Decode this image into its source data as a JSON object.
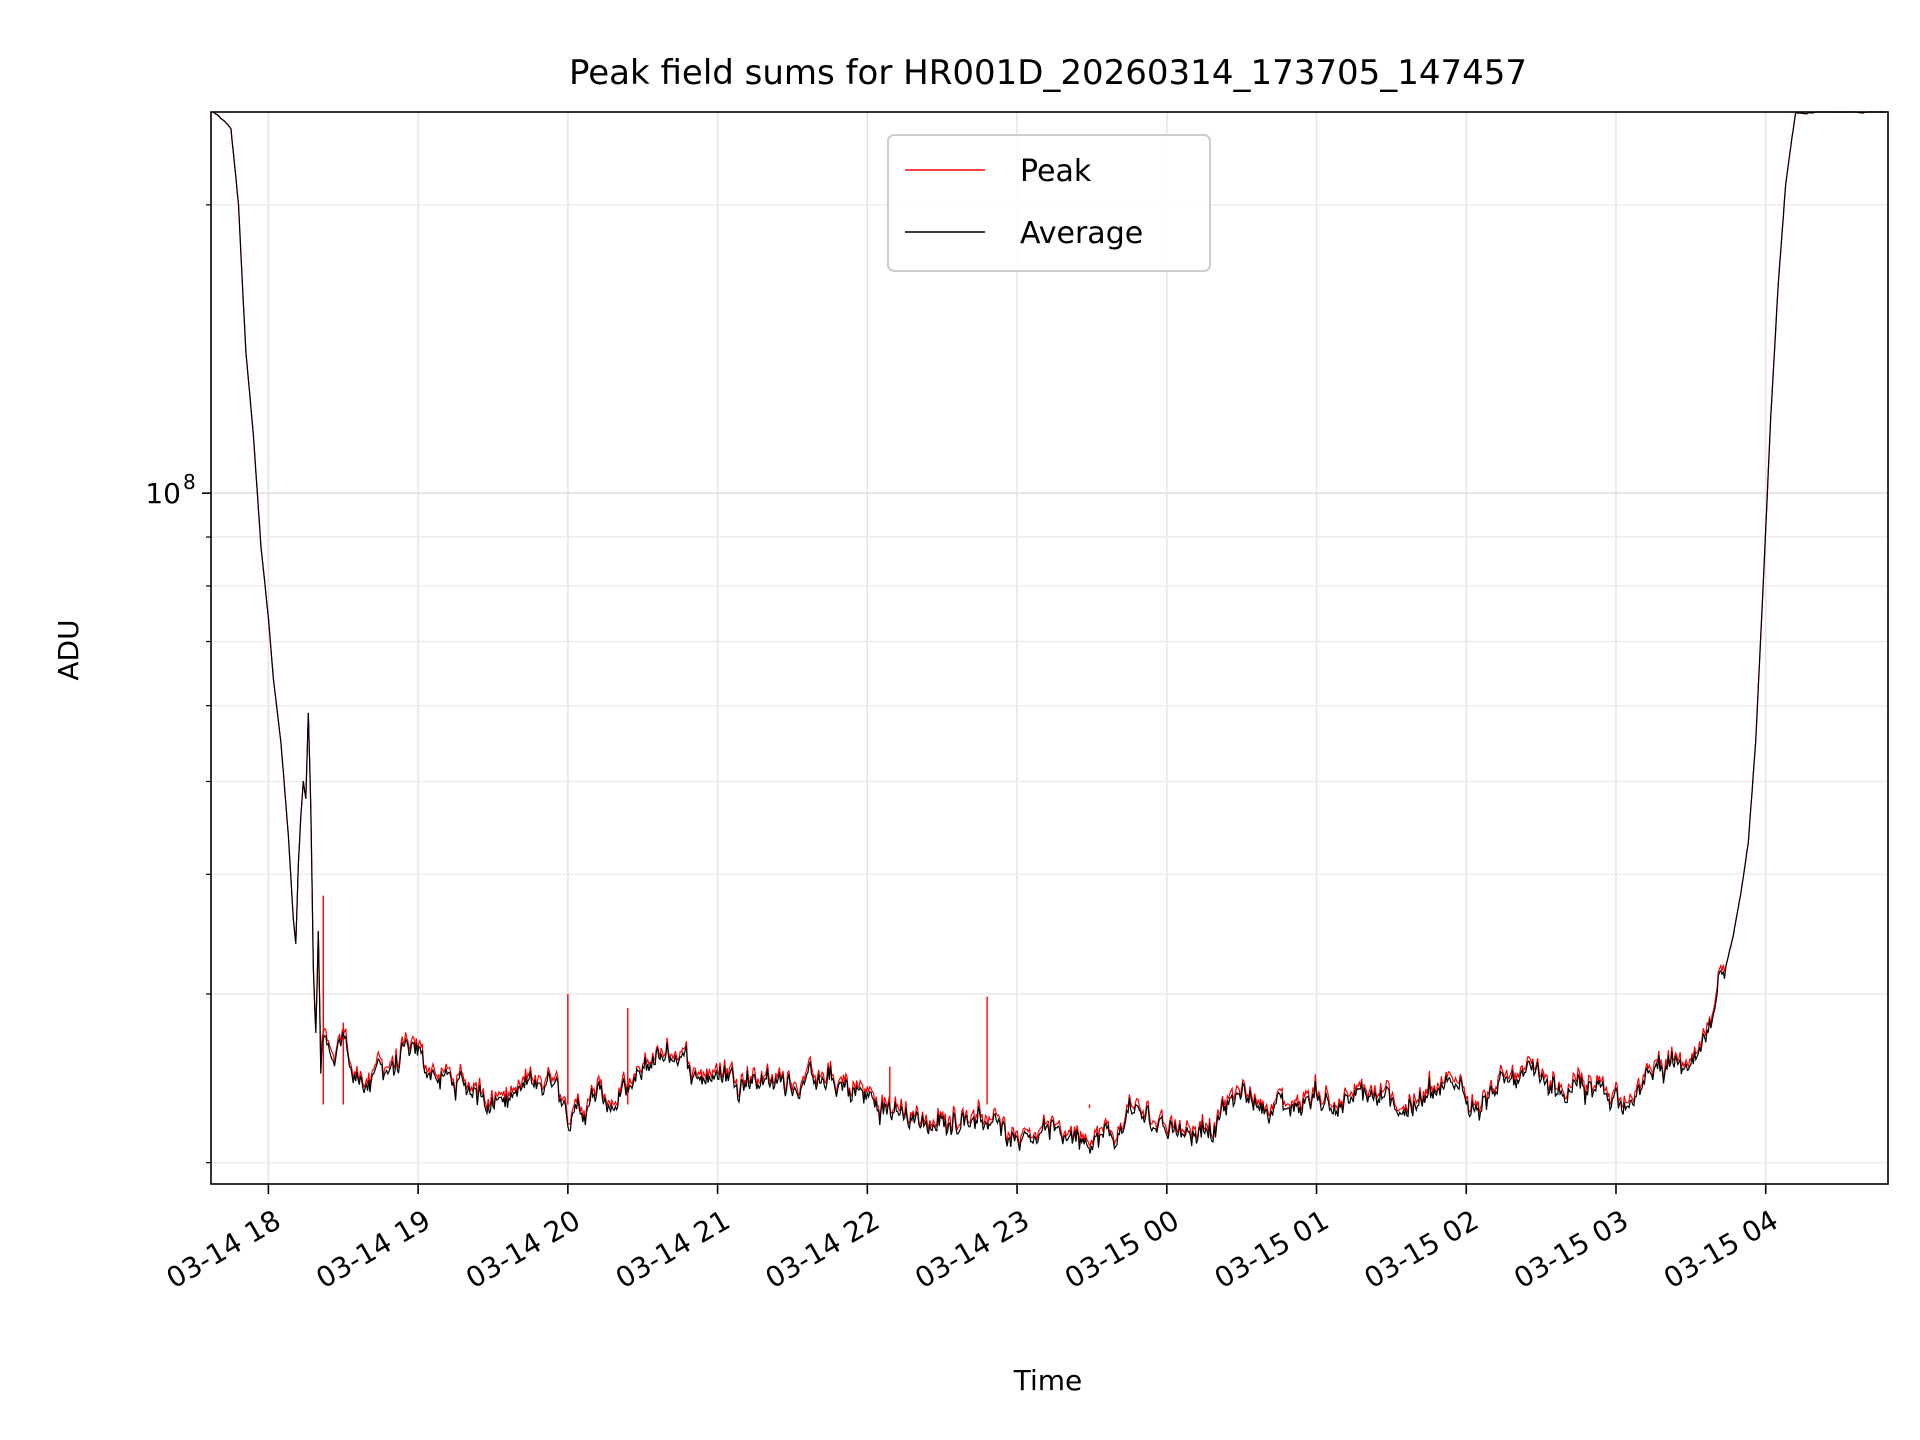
{
  "chart_data": {
    "type": "line",
    "title": "Peak field sums for HR001D_20260314_173705_147457",
    "xlabel": "Time",
    "ylabel": "ADU",
    "x_tick_labels": [
      "03-14 18",
      "03-14 19",
      "03-14 20",
      "03-14 21",
      "03-14 22",
      "03-14 23",
      "03-15 00",
      "03-15 01",
      "03-15 02",
      "03-15 03",
      "03-15 04"
    ],
    "y_tick_label": {
      "base": "10",
      "exp": "8"
    },
    "xlim": [
      "2026-03-14T17:37",
      "2026-03-15T04:49"
    ],
    "ylim": [
      19000000,
      250000000
    ],
    "yscale": "log",
    "grid": true,
    "legend_position": "upper center",
    "series": [
      {
        "name": "Peak",
        "color": "#ff0000",
        "points": [
          [
            "2026-03-14T17:38",
            250000000
          ],
          [
            "2026-03-14T17:45",
            240000000
          ],
          [
            "2026-03-14T17:48",
            200000000
          ],
          [
            "2026-03-14T17:51",
            140000000
          ],
          [
            "2026-03-14T17:54",
            115000000
          ],
          [
            "2026-03-14T17:57",
            88000000
          ],
          [
            "2026-03-14T18:00",
            74000000
          ],
          [
            "2026-03-14T18:02",
            64000000
          ],
          [
            "2026-03-14T18:05",
            55000000
          ],
          [
            "2026-03-14T18:08",
            44000000
          ],
          [
            "2026-03-14T18:10",
            36000000
          ],
          [
            "2026-03-14T18:11",
            34000000
          ],
          [
            "2026-03-14T18:12",
            41000000
          ],
          [
            "2026-03-14T18:13",
            46000000
          ],
          [
            "2026-03-14T18:14",
            50000000
          ],
          [
            "2026-03-14T18:15",
            48000000
          ],
          [
            "2026-03-14T18:16",
            59000000
          ],
          [
            "2026-03-14T18:17",
            47000000
          ],
          [
            "2026-03-14T18:18",
            32000000
          ],
          [
            "2026-03-14T18:19",
            27000000
          ],
          [
            "2026-03-14T18:20",
            35000000
          ],
          [
            "2026-03-14T18:21",
            25000000
          ],
          [
            "2026-03-14T18:22",
            27000000
          ],
          [
            "2026-03-14T18:24",
            26000000
          ],
          [
            "2026-03-14T18:26",
            24500000
          ],
          [
            "2026-03-14T18:30",
            26500000
          ],
          [
            "2026-03-14T18:35",
            24200000
          ],
          [
            "2026-03-14T18:45",
            24800000
          ],
          [
            "2026-03-14T18:55",
            25700000
          ],
          [
            "2026-03-14T19:05",
            24900000
          ],
          [
            "2026-03-14T19:15",
            24000000
          ],
          [
            "2026-03-14T19:30",
            23600000
          ],
          [
            "2026-03-14T19:45",
            23900000
          ],
          [
            "2026-03-14T19:55",
            24700000
          ],
          [
            "2026-03-14T20:00",
            23200000
          ],
          [
            "2026-03-14T20:05",
            22500000
          ],
          [
            "2026-03-14T20:10",
            23300000
          ],
          [
            "2026-03-14T20:20",
            23000000
          ],
          [
            "2026-03-14T20:30",
            24400000
          ],
          [
            "2026-03-14T20:35",
            25600000
          ],
          [
            "2026-03-14T20:45",
            26200000
          ],
          [
            "2026-03-14T20:50",
            24900000
          ],
          [
            "2026-03-14T21:00",
            24600000
          ],
          [
            "2026-03-14T21:10",
            24900000
          ],
          [
            "2026-03-14T21:20",
            24500000
          ],
          [
            "2026-03-14T21:30",
            24100000
          ],
          [
            "2026-03-14T21:40",
            24500000
          ],
          [
            "2026-03-14T21:50",
            23700000
          ],
          [
            "2026-03-14T22:00",
            23400000
          ],
          [
            "2026-03-14T22:05",
            22700000
          ],
          [
            "2026-03-14T22:15",
            22400000
          ],
          [
            "2026-03-14T22:25",
            21900000
          ],
          [
            "2026-03-14T22:35",
            22100000
          ],
          [
            "2026-03-14T22:45",
            22500000
          ],
          [
            "2026-03-14T22:55",
            21800000
          ],
          [
            "2026-03-14T23:00",
            21500000
          ],
          [
            "2026-03-14T23:05",
            21700000
          ],
          [
            "2026-03-14T23:15",
            21400000
          ],
          [
            "2026-03-14T23:25",
            21600000
          ],
          [
            "2026-03-14T23:35",
            21300000
          ],
          [
            "2026-03-14T23:40",
            21000000
          ],
          [
            "2026-03-14T23:45",
            22800000
          ],
          [
            "2026-03-14T23:50",
            22200000
          ],
          [
            "2026-03-14T23:55",
            21800000
          ],
          [
            "2026-03-15T00:00",
            22300000
          ],
          [
            "2026-03-15T00:10",
            21500000
          ],
          [
            "2026-03-15T00:20",
            22300000
          ],
          [
            "2026-03-15T00:30",
            23500000
          ],
          [
            "2026-03-15T00:40",
            23000000
          ],
          [
            "2026-03-15T00:50",
            22800000
          ],
          [
            "2026-03-15T01:00",
            23600000
          ],
          [
            "2026-03-15T01:10",
            22800000
          ],
          [
            "2026-03-15T01:20",
            23300000
          ],
          [
            "2026-03-15T01:30",
            22700000
          ],
          [
            "2026-03-15T01:40",
            23100000
          ],
          [
            "2026-03-15T01:50",
            23500000
          ],
          [
            "2026-03-15T02:00",
            23800000
          ],
          [
            "2026-03-15T02:10",
            23500000
          ],
          [
            "2026-03-15T02:20",
            24400000
          ],
          [
            "2026-03-15T02:30",
            23900000
          ],
          [
            "2026-03-15T02:40",
            23700000
          ],
          [
            "2026-03-15T02:50",
            23400000
          ],
          [
            "2026-03-15T03:00",
            23600000
          ],
          [
            "2026-03-15T03:10",
            23800000
          ],
          [
            "2026-03-15T03:20",
            25600000
          ],
          [
            "2026-03-15T03:30",
            24600000
          ],
          [
            "2026-03-15T03:35",
            25800000
          ],
          [
            "2026-03-15T03:40",
            28500000
          ],
          [
            "2026-03-15T03:43",
            31500000
          ],
          [
            "2026-03-15T03:47",
            34500000
          ],
          [
            "2026-03-15T03:50",
            38000000
          ],
          [
            "2026-03-15T03:53",
            43000000
          ],
          [
            "2026-03-15T03:56",
            55000000
          ],
          [
            "2026-03-15T03:59",
            80000000
          ],
          [
            "2026-03-15T04:02",
            120000000
          ],
          [
            "2026-03-15T04:05",
            165000000
          ],
          [
            "2026-03-15T04:08",
            210000000
          ],
          [
            "2026-03-15T04:12",
            250000000
          ],
          [
            "2026-03-15T04:48",
            250000000
          ]
        ],
        "spikes": [
          [
            "2026-03-14T18:22",
            38000000
          ],
          [
            "2026-03-14T18:30",
            28000000
          ],
          [
            "2026-03-14T20:00",
            30000000
          ],
          [
            "2026-03-14T20:24",
            29000000
          ],
          [
            "2026-03-14T22:09",
            25200000
          ],
          [
            "2026-03-14T22:48",
            29800000
          ],
          [
            "2026-03-14T23:29",
            22800000
          ]
        ]
      },
      {
        "name": "Average",
        "color": "#000000",
        "points_note": ""
      }
    ]
  }
}
